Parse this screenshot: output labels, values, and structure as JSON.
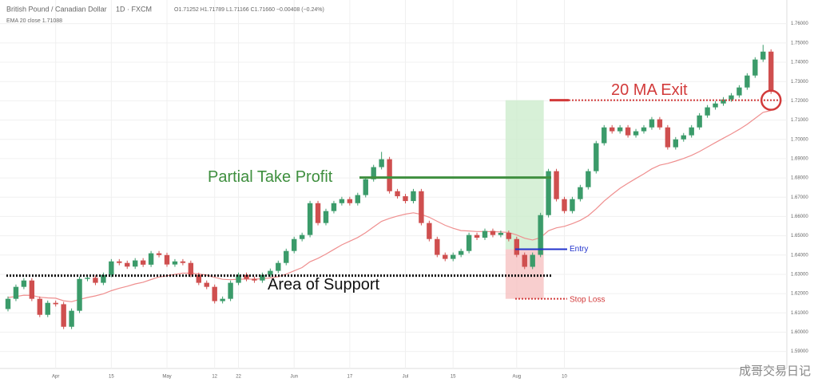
{
  "chart_data": {
    "type": "candlestick",
    "symbol": "British Pound / Canadian Dollar",
    "interval": "1D · FXCM",
    "quote": "O1.71252 H1.71789 L1.71166 C1.71660 −0.00408 (−0.24%)",
    "indicator": "EMA 20 close 1.71088",
    "watermark": "成哥交易日记",
    "up_color": "#3b9b6a",
    "down_color": "#cf4f4f",
    "ema_color": "#ef8f8f",
    "grid": true,
    "ylim": [
      1.582,
      1.764
    ],
    "yticks": [
      {
        "value": 1.59,
        "label": "1.59000"
      },
      {
        "value": 1.6,
        "label": "1.60000"
      },
      {
        "value": 1.61,
        "label": "1.61000"
      },
      {
        "value": 1.62,
        "label": "1.62000"
      },
      {
        "value": 1.63,
        "label": "1.63000"
      },
      {
        "value": 1.64,
        "label": "1.64000"
      },
      {
        "value": 1.65,
        "label": "1.65000"
      },
      {
        "value": 1.66,
        "label": "1.66000"
      },
      {
        "value": 1.67,
        "label": "1.67000"
      },
      {
        "value": 1.68,
        "label": "1.68000"
      },
      {
        "value": 1.69,
        "label": "1.69000"
      },
      {
        "value": 1.7,
        "label": "1.70000"
      },
      {
        "value": 1.71,
        "label": "1.71000"
      },
      {
        "value": 1.72,
        "label": "1.72000"
      },
      {
        "value": 1.73,
        "label": "1.73000"
      },
      {
        "value": 1.74,
        "label": "1.74000"
      },
      {
        "value": 1.75,
        "label": "1.75000"
      },
      {
        "value": 1.76,
        "label": "1.76000"
      }
    ],
    "categories": [
      null,
      null,
      null,
      null,
      null,
      null,
      "Apr",
      null,
      null,
      null,
      null,
      null,
      null,
      "15",
      null,
      null,
      null,
      null,
      null,
      null,
      "May",
      null,
      null,
      null,
      null,
      null,
      "12",
      null,
      null,
      "22",
      null,
      null,
      null,
      null,
      null,
      null,
      "Jun",
      null,
      null,
      null,
      null,
      null,
      null,
      "17",
      null,
      null,
      null,
      null,
      null,
      null,
      "Jul",
      null,
      null,
      null,
      null,
      null,
      "15",
      null,
      null,
      null,
      null,
      null,
      null,
      null,
      "Aug",
      null,
      null,
      null,
      null,
      null,
      "10",
      null,
      null,
      null,
      null,
      null,
      null,
      null,
      null,
      null,
      null,
      null,
      null,
      null,
      null,
      null,
      null,
      null,
      null,
      null,
      null,
      null,
      null,
      null,
      null,
      null,
      null
    ],
    "candles": [
      {
        "o": 1.612,
        "h": 1.6185,
        "l": 1.6108,
        "c": 1.6173
      },
      {
        "o": 1.6173,
        "h": 1.6247,
        "l": 1.6161,
        "c": 1.6235
      },
      {
        "o": 1.6235,
        "h": 1.628,
        "l": 1.6223,
        "c": 1.6268
      },
      {
        "o": 1.6268,
        "h": 1.628,
        "l": 1.6161,
        "c": 1.6173
      },
      {
        "o": 1.6173,
        "h": 1.6185,
        "l": 1.6078,
        "c": 1.609
      },
      {
        "o": 1.609,
        "h": 1.6164,
        "l": 1.6078,
        "c": 1.6152
      },
      {
        "o": 1.6152,
        "h": 1.6164,
        "l": 1.6133,
        "c": 1.6145
      },
      {
        "o": 1.6145,
        "h": 1.6157,
        "l": 1.6016,
        "c": 1.6028
      },
      {
        "o": 1.6028,
        "h": 1.6123,
        "l": 1.6016,
        "c": 1.6111
      },
      {
        "o": 1.6111,
        "h": 1.6288,
        "l": 1.6099,
        "c": 1.6276
      },
      {
        "o": 1.6276,
        "h": 1.6294,
        "l": 1.6264,
        "c": 1.6282
      },
      {
        "o": 1.6282,
        "h": 1.6294,
        "l": 1.6244,
        "c": 1.6256
      },
      {
        "o": 1.6256,
        "h": 1.6309,
        "l": 1.6244,
        "c": 1.6297
      },
      {
        "o": 1.6297,
        "h": 1.6379,
        "l": 1.6285,
        "c": 1.6367
      },
      {
        "o": 1.6367,
        "h": 1.6379,
        "l": 1.6347,
        "c": 1.6359
      },
      {
        "o": 1.6359,
        "h": 1.6371,
        "l": 1.6328,
        "c": 1.634
      },
      {
        "o": 1.634,
        "h": 1.6384,
        "l": 1.6328,
        "c": 1.6372
      },
      {
        "o": 1.6372,
        "h": 1.6384,
        "l": 1.6338,
        "c": 1.635
      },
      {
        "o": 1.635,
        "h": 1.6421,
        "l": 1.6338,
        "c": 1.6409
      },
      {
        "o": 1.6409,
        "h": 1.6421,
        "l": 1.6388,
        "c": 1.64
      },
      {
        "o": 1.64,
        "h": 1.6412,
        "l": 1.6339,
        "c": 1.6351
      },
      {
        "o": 1.6351,
        "h": 1.6379,
        "l": 1.6339,
        "c": 1.6367
      },
      {
        "o": 1.6367,
        "h": 1.6379,
        "l": 1.6347,
        "c": 1.6359
      },
      {
        "o": 1.6359,
        "h": 1.6371,
        "l": 1.6285,
        "c": 1.6297
      },
      {
        "o": 1.6297,
        "h": 1.6309,
        "l": 1.6244,
        "c": 1.6256
      },
      {
        "o": 1.6256,
        "h": 1.6268,
        "l": 1.6223,
        "c": 1.6235
      },
      {
        "o": 1.6235,
        "h": 1.6247,
        "l": 1.6149,
        "c": 1.6161
      },
      {
        "o": 1.6161,
        "h": 1.6185,
        "l": 1.6149,
        "c": 1.6173
      },
      {
        "o": 1.6173,
        "h": 1.6268,
        "l": 1.6161,
        "c": 1.6256
      },
      {
        "o": 1.6256,
        "h": 1.6309,
        "l": 1.6244,
        "c": 1.6297
      },
      {
        "o": 1.6297,
        "h": 1.6309,
        "l": 1.6264,
        "c": 1.6276
      },
      {
        "o": 1.6276,
        "h": 1.6288,
        "l": 1.6256,
        "c": 1.6268
      },
      {
        "o": 1.6268,
        "h": 1.6309,
        "l": 1.6256,
        "c": 1.6297
      },
      {
        "o": 1.6297,
        "h": 1.633,
        "l": 1.6285,
        "c": 1.6318
      },
      {
        "o": 1.6318,
        "h": 1.6371,
        "l": 1.6306,
        "c": 1.6359
      },
      {
        "o": 1.6359,
        "h": 1.6433,
        "l": 1.6347,
        "c": 1.6421
      },
      {
        "o": 1.6421,
        "h": 1.6495,
        "l": 1.6409,
        "c": 1.6483
      },
      {
        "o": 1.6483,
        "h": 1.6516,
        "l": 1.6471,
        "c": 1.6504
      },
      {
        "o": 1.6504,
        "h": 1.6681,
        "l": 1.6492,
        "c": 1.6669
      },
      {
        "o": 1.6669,
        "h": 1.6681,
        "l": 1.6554,
        "c": 1.6566
      },
      {
        "o": 1.6566,
        "h": 1.664,
        "l": 1.6554,
        "c": 1.6628
      },
      {
        "o": 1.6628,
        "h": 1.6681,
        "l": 1.6616,
        "c": 1.6669
      },
      {
        "o": 1.6669,
        "h": 1.6702,
        "l": 1.6657,
        "c": 1.669
      },
      {
        "o": 1.669,
        "h": 1.6702,
        "l": 1.6657,
        "c": 1.6669
      },
      {
        "o": 1.6669,
        "h": 1.6723,
        "l": 1.6657,
        "c": 1.6711
      },
      {
        "o": 1.6711,
        "h": 1.6805,
        "l": 1.6699,
        "c": 1.6793
      },
      {
        "o": 1.6793,
        "h": 1.6868,
        "l": 1.6781,
        "c": 1.6856
      },
      {
        "o": 1.6856,
        "h": 1.6935,
        "l": 1.6844,
        "c": 1.6897
      },
      {
        "o": 1.6897,
        "h": 1.6909,
        "l": 1.6719,
        "c": 1.6731
      },
      {
        "o": 1.6731,
        "h": 1.6743,
        "l": 1.6693,
        "c": 1.6705
      },
      {
        "o": 1.6705,
        "h": 1.6717,
        "l": 1.6668,
        "c": 1.668
      },
      {
        "o": 1.668,
        "h": 1.6743,
        "l": 1.6668,
        "c": 1.6731
      },
      {
        "o": 1.6731,
        "h": 1.6743,
        "l": 1.6554,
        "c": 1.6566
      },
      {
        "o": 1.6566,
        "h": 1.6578,
        "l": 1.6471,
        "c": 1.6483
      },
      {
        "o": 1.6483,
        "h": 1.6495,
        "l": 1.6389,
        "c": 1.6401
      },
      {
        "o": 1.6401,
        "h": 1.6413,
        "l": 1.6368,
        "c": 1.638
      },
      {
        "o": 1.638,
        "h": 1.6413,
        "l": 1.6368,
        "c": 1.6401
      },
      {
        "o": 1.6401,
        "h": 1.6433,
        "l": 1.6389,
        "c": 1.6421
      },
      {
        "o": 1.6421,
        "h": 1.6516,
        "l": 1.6409,
        "c": 1.6504
      },
      {
        "o": 1.6504,
        "h": 1.6516,
        "l": 1.6478,
        "c": 1.649
      },
      {
        "o": 1.649,
        "h": 1.6537,
        "l": 1.6478,
        "c": 1.6525
      },
      {
        "o": 1.6525,
        "h": 1.6537,
        "l": 1.6492,
        "c": 1.6504
      },
      {
        "o": 1.6504,
        "h": 1.6527,
        "l": 1.6492,
        "c": 1.6515
      },
      {
        "o": 1.6515,
        "h": 1.6527,
        "l": 1.6471,
        "c": 1.6483
      },
      {
        "o": 1.6483,
        "h": 1.6495,
        "l": 1.6389,
        "c": 1.6401
      },
      {
        "o": 1.6401,
        "h": 1.6413,
        "l": 1.6327,
        "c": 1.6339
      },
      {
        "o": 1.6339,
        "h": 1.6413,
        "l": 1.6327,
        "c": 1.6401
      },
      {
        "o": 1.6401,
        "h": 1.6619,
        "l": 1.6389,
        "c": 1.6607
      },
      {
        "o": 1.6607,
        "h": 1.6847,
        "l": 1.6595,
        "c": 1.6835
      },
      {
        "o": 1.6835,
        "h": 1.6847,
        "l": 1.6678,
        "c": 1.669
      },
      {
        "o": 1.669,
        "h": 1.6702,
        "l": 1.6616,
        "c": 1.6628
      },
      {
        "o": 1.6628,
        "h": 1.6702,
        "l": 1.6616,
        "c": 1.669
      },
      {
        "o": 1.669,
        "h": 1.6764,
        "l": 1.6678,
        "c": 1.6752
      },
      {
        "o": 1.6752,
        "h": 1.6847,
        "l": 1.674,
        "c": 1.6835
      },
      {
        "o": 1.6835,
        "h": 1.6992,
        "l": 1.6823,
        "c": 1.698
      },
      {
        "o": 1.698,
        "h": 1.7074,
        "l": 1.6968,
        "c": 1.7062
      },
      {
        "o": 1.7062,
        "h": 1.7074,
        "l": 1.703,
        "c": 1.7042
      },
      {
        "o": 1.7042,
        "h": 1.7074,
        "l": 1.703,
        "c": 1.7062
      },
      {
        "o": 1.7062,
        "h": 1.7074,
        "l": 1.7009,
        "c": 1.7021
      },
      {
        "o": 1.7021,
        "h": 1.7054,
        "l": 1.7009,
        "c": 1.7042
      },
      {
        "o": 1.7042,
        "h": 1.7074,
        "l": 1.703,
        "c": 1.7062
      },
      {
        "o": 1.7062,
        "h": 1.7116,
        "l": 1.705,
        "c": 1.7104
      },
      {
        "o": 1.7104,
        "h": 1.7116,
        "l": 1.705,
        "c": 1.7062
      },
      {
        "o": 1.7062,
        "h": 1.7074,
        "l": 1.6947,
        "c": 1.6959
      },
      {
        "o": 1.6959,
        "h": 1.7012,
        "l": 1.6947,
        "c": 1.7
      },
      {
        "o": 1.7,
        "h": 1.7033,
        "l": 1.6988,
        "c": 1.7021
      },
      {
        "o": 1.7021,
        "h": 1.7074,
        "l": 1.7009,
        "c": 1.7062
      },
      {
        "o": 1.7062,
        "h": 1.7136,
        "l": 1.705,
        "c": 1.7124
      },
      {
        "o": 1.7124,
        "h": 1.7178,
        "l": 1.7112,
        "c": 1.7166
      },
      {
        "o": 1.7166,
        "h": 1.7198,
        "l": 1.7154,
        "c": 1.7186
      },
      {
        "o": 1.7186,
        "h": 1.7219,
        "l": 1.7174,
        "c": 1.7207
      },
      {
        "o": 1.7207,
        "h": 1.724,
        "l": 1.7195,
        "c": 1.7228
      },
      {
        "o": 1.7228,
        "h": 1.7281,
        "l": 1.7216,
        "c": 1.7269
      },
      {
        "o": 1.7269,
        "h": 1.7343,
        "l": 1.7257,
        "c": 1.7331
      },
      {
        "o": 1.7331,
        "h": 1.7426,
        "l": 1.7319,
        "c": 1.7414
      },
      {
        "o": 1.7414,
        "h": 1.749,
        "l": 1.7402,
        "c": 1.7455
      },
      {
        "o": 1.7455,
        "h": 1.7467,
        "l": 1.7236,
        "c": 1.7248
      }
    ],
    "ema": [
      1.618,
      1.6185,
      1.6192,
      1.6191,
      1.6181,
      1.6178,
      1.6176,
      1.6163,
      1.6158,
      1.617,
      1.618,
      1.6188,
      1.6199,
      1.6215,
      1.6228,
      1.6238,
      1.625,
      1.6259,
      1.6273,
      1.6286,
      1.6292,
      1.63,
      1.6306,
      1.6306,
      1.6302,
      1.6296,
      1.6284,
      1.6274,
      1.6272,
      1.6275,
      1.6275,
      1.6275,
      1.6277,
      1.6281,
      1.6288,
      1.6301,
      1.6318,
      1.6335,
      1.6365,
      1.6383,
      1.6405,
      1.6429,
      1.6453,
      1.6472,
      1.6491,
      1.6516,
      1.6546,
      1.6575,
      1.659,
      1.6602,
      1.6612,
      1.6619,
      1.6611,
      1.6596,
      1.6575,
      1.6554,
      1.6539,
      1.6527,
      1.6525,
      1.6522,
      1.6522,
      1.6521,
      1.652,
      1.6517,
      1.6504,
      1.6487,
      1.6478,
      1.649,
      1.6526,
      1.6541,
      1.6549,
      1.6563,
      1.658,
      1.6604,
      1.664,
      1.668,
      1.6714,
      1.6746,
      1.6772,
      1.6797,
      1.6821,
      1.6847,
      1.6866,
      1.6875,
      1.6887,
      1.6901,
      1.6917,
      1.6937,
      1.696,
      1.6983,
      1.7006,
      1.7028,
      1.7052,
      1.7078,
      1.7109,
      1.714,
      1.715
    ],
    "annotations": {
      "support": {
        "text": "Area of Support",
        "level": 1.6293,
        "color": "#111111"
      },
      "take_profit": {
        "text": "Partial Take Profit",
        "level": 1.6802,
        "color": "#3f8f3f"
      },
      "exit": {
        "text": "20 MA Exit",
        "level": 1.7203,
        "color": "#d23a3a"
      },
      "entry": {
        "text": "Entry",
        "level": 1.643,
        "color": "#2233cc"
      },
      "stop": {
        "text": "Stop Loss",
        "level": 1.6173,
        "color": "#d23a3a"
      }
    }
  }
}
